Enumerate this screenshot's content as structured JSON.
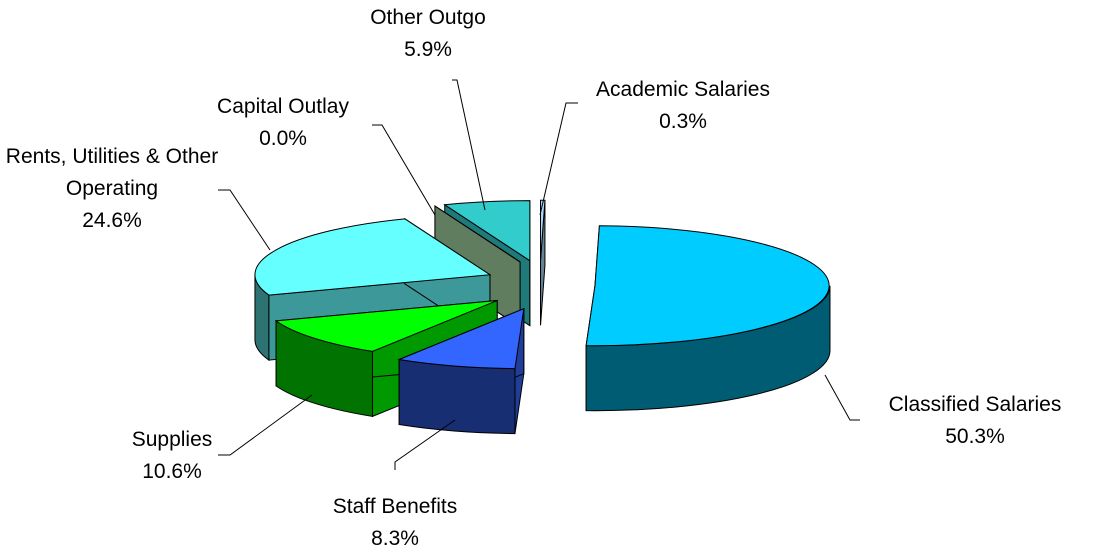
{
  "chart_data": {
    "type": "pie3d",
    "categories": [
      "Academic Salaries",
      "Classified Salaries",
      "Staff Benefits",
      "Supplies",
      "Rents, Utilities & Other Operating",
      "Capital Outlay",
      "Other Outgo"
    ],
    "values": [
      0.3,
      50.3,
      8.3,
      10.6,
      24.6,
      0.0,
      5.9
    ],
    "value_labels": [
      "0.3%",
      "50.3%",
      "8.3%",
      "10.6%",
      "24.6%",
      "0.0%",
      "5.9%"
    ],
    "colors": [
      "#a8d8ff",
      "#00ccff",
      "#3366ff",
      "#00ff00",
      "#66ffff",
      "#a0d0a0",
      "#33cccc"
    ]
  }
}
